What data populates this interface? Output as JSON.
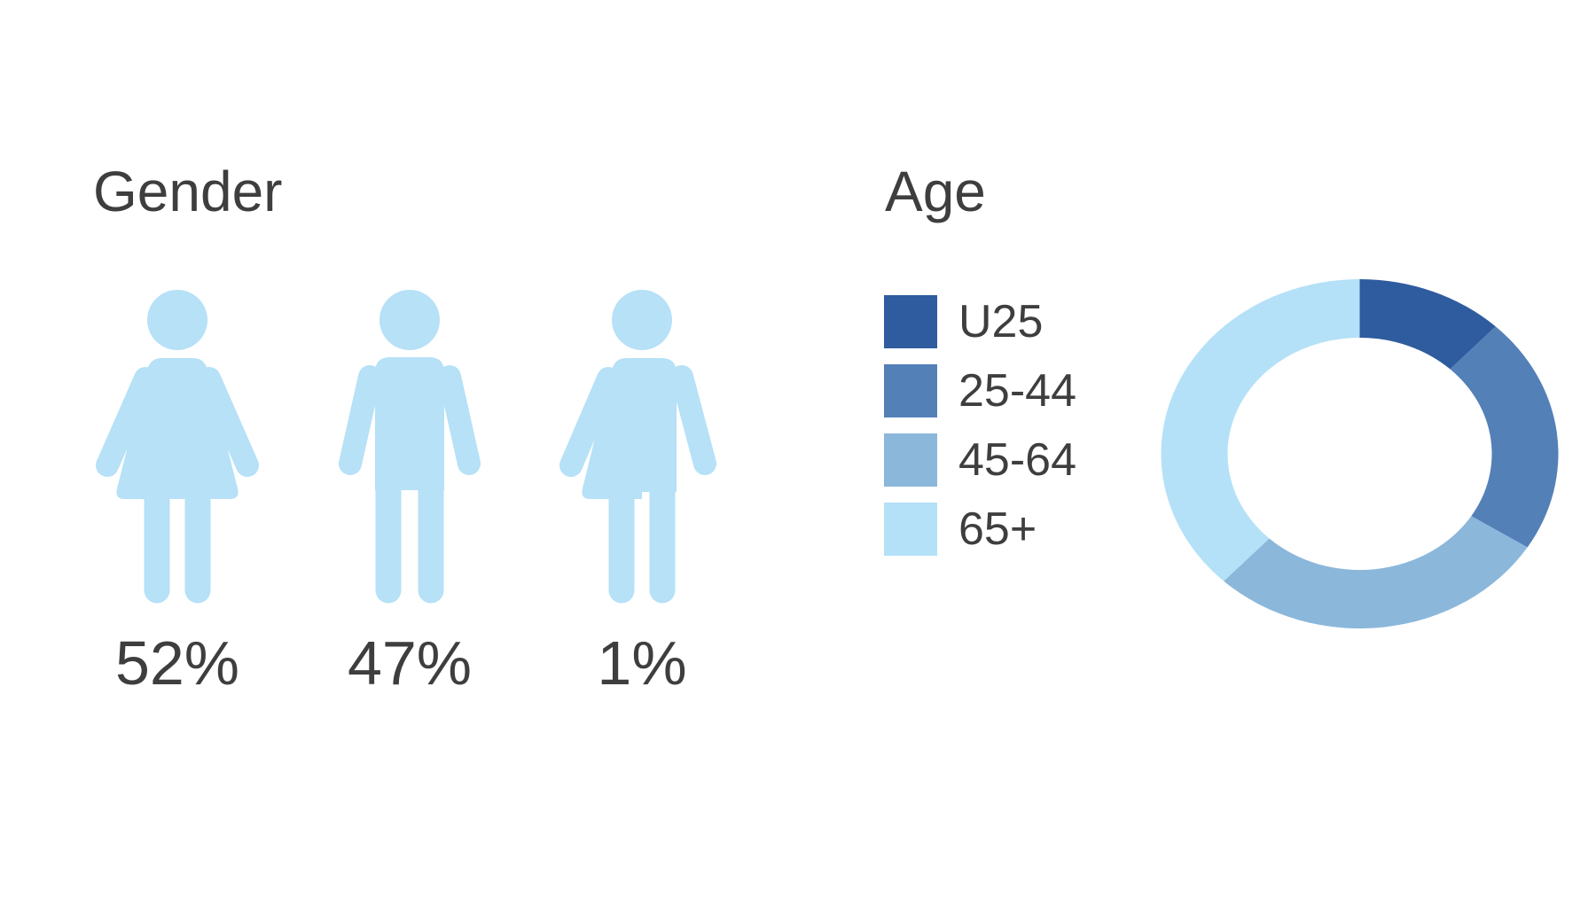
{
  "text_color": "#3e3e3e",
  "background": "#ffffff",
  "gender": {
    "title": "Gender",
    "icon_color": "#b6e1f7",
    "items": [
      {
        "icon": "female-icon",
        "label": "52%"
      },
      {
        "icon": "male-icon",
        "label": "47%"
      },
      {
        "icon": "androgynous-icon",
        "label": "1%"
      }
    ]
  },
  "age": {
    "title": "Age",
    "legend": [
      {
        "label": "U25",
        "color": "#2e5c9e"
      },
      {
        "label": "25-44",
        "color": "#5480b8"
      },
      {
        "label": "45-64",
        "color": "#8bb7db"
      },
      {
        "label": "65+",
        "color": "#b4e1f7"
      }
    ]
  },
  "chart_data": [
    {
      "type": "pictogram",
      "title": "Gender",
      "categories": [
        "female",
        "male",
        "androgynous"
      ],
      "values": [
        52,
        47,
        1
      ],
      "unit": "%",
      "labels": [
        "52%",
        "47%",
        "1%"
      ],
      "icon_color": "#b6e1f7"
    },
    {
      "type": "pie",
      "subtype": "donut",
      "title": "Age",
      "categories": [
        "U25",
        "25-44",
        "45-64",
        "65+"
      ],
      "values": [
        12,
        22,
        28,
        38
      ],
      "unit": "%",
      "colors": [
        "#2e5c9e",
        "#5480b8",
        "#8bb7db",
        "#b4e1f7"
      ],
      "start_angle_deg": 0,
      "direction": "clockwise",
      "legend_position": "left"
    }
  ]
}
